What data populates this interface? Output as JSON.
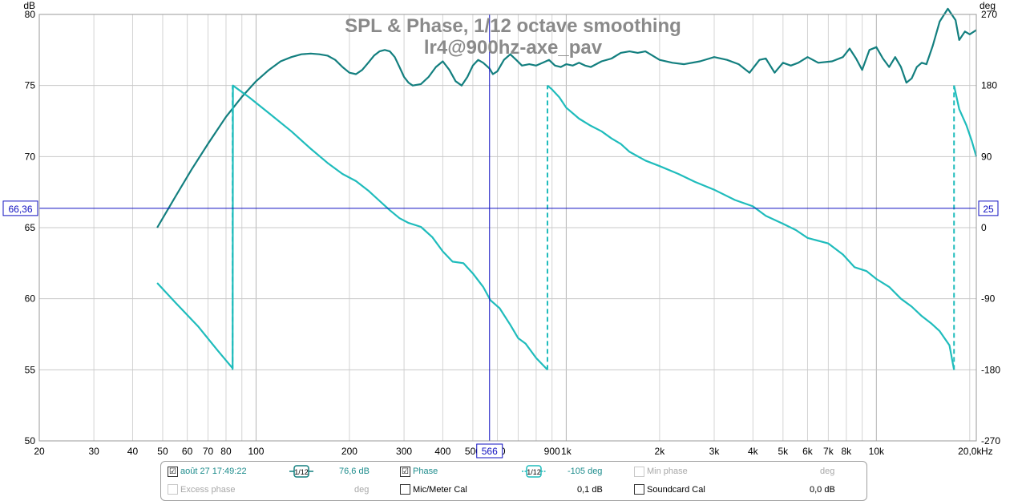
{
  "chart_data": {
    "type": "line",
    "title": "SPL & Phase, 1/12 octave smoothing",
    "subtitle": "lr4@900hz-axe_pav",
    "left_unit": "dB",
    "right_unit": "deg",
    "x_unit": "Hz",
    "xlim": [
      20,
      21000
    ],
    "x_scale": "log",
    "ylim": [
      50,
      80
    ],
    "y2lim": [
      -270,
      270
    ],
    "x_ticks": [
      {
        "v": 20,
        "label": "20"
      },
      {
        "v": 30,
        "label": "30"
      },
      {
        "v": 40,
        "label": "40"
      },
      {
        "v": 50,
        "label": "50"
      },
      {
        "v": 60,
        "label": "60"
      },
      {
        "v": 70,
        "label": "70"
      },
      {
        "v": 80,
        "label": "80"
      },
      {
        "v": 100,
        "label": "100"
      },
      {
        "v": 200,
        "label": "200"
      },
      {
        "v": 300,
        "label": "300"
      },
      {
        "v": 400,
        "label": "400"
      },
      {
        "v": 500,
        "label": "500"
      },
      {
        "v": 600,
        "label": "600"
      },
      {
        "v": 900,
        "label": "900"
      },
      {
        "v": 1000,
        "label": "1k"
      },
      {
        "v": 2000,
        "label": "2k"
      },
      {
        "v": 3000,
        "label": "3k"
      },
      {
        "v": 4000,
        "label": "4k"
      },
      {
        "v": 5000,
        "label": "5k"
      },
      {
        "v": 6000,
        "label": "6k"
      },
      {
        "v": 7000,
        "label": "7k"
      },
      {
        "v": 8000,
        "label": "8k"
      },
      {
        "v": 10000,
        "label": "10k"
      },
      {
        "v": 20000,
        "label": "20,0k"
      }
    ],
    "y_ticks": [
      50,
      55,
      60,
      65,
      70,
      75,
      80
    ],
    "y2_ticks": [
      -270,
      -180,
      -90,
      0,
      90,
      180,
      270
    ],
    "cursor": {
      "x": 566,
      "x_label": "566",
      "y": 66.36,
      "y_label": "66,36",
      "y2_label": "25"
    },
    "colors": {
      "spl": "#137f7f",
      "phase": "#1fbcbc",
      "cursor": "#1010c0",
      "grid": "#cfcfcf"
    },
    "series": [
      {
        "name": "SPL",
        "axis": "left",
        "points": [
          [
            48,
            65.0
          ],
          [
            55,
            67.2
          ],
          [
            62,
            69.1
          ],
          [
            70,
            70.9
          ],
          [
            80,
            72.8
          ],
          [
            90,
            74.2
          ],
          [
            100,
            75.3
          ],
          [
            110,
            76.1
          ],
          [
            120,
            76.7
          ],
          [
            130,
            77.0
          ],
          [
            140,
            77.2
          ],
          [
            150,
            77.25
          ],
          [
            160,
            77.2
          ],
          [
            170,
            77.1
          ],
          [
            180,
            76.8
          ],
          [
            190,
            76.3
          ],
          [
            200,
            75.9
          ],
          [
            210,
            75.8
          ],
          [
            220,
            76.1
          ],
          [
            230,
            76.6
          ],
          [
            240,
            77.1
          ],
          [
            250,
            77.4
          ],
          [
            260,
            77.5
          ],
          [
            270,
            77.4
          ],
          [
            280,
            77.0
          ],
          [
            290,
            76.3
          ],
          [
            300,
            75.6
          ],
          [
            310,
            75.2
          ],
          [
            320,
            75.0
          ],
          [
            340,
            75.1
          ],
          [
            360,
            75.6
          ],
          [
            380,
            76.3
          ],
          [
            400,
            76.7
          ],
          [
            420,
            76.1
          ],
          [
            440,
            75.3
          ],
          [
            460,
            75.0
          ],
          [
            480,
            75.6
          ],
          [
            500,
            76.4
          ],
          [
            520,
            76.8
          ],
          [
            540,
            76.6
          ],
          [
            566,
            76.2
          ],
          [
            580,
            75.8
          ],
          [
            600,
            76.0
          ],
          [
            630,
            76.8
          ],
          [
            660,
            77.2
          ],
          [
            690,
            76.8
          ],
          [
            720,
            76.4
          ],
          [
            760,
            76.5
          ],
          [
            800,
            76.4
          ],
          [
            840,
            76.6
          ],
          [
            880,
            76.8
          ],
          [
            920,
            76.4
          ],
          [
            960,
            76.3
          ],
          [
            1000,
            76.5
          ],
          [
            1050,
            76.4
          ],
          [
            1100,
            76.6
          ],
          [
            1150,
            76.4
          ],
          [
            1200,
            76.3
          ],
          [
            1300,
            76.7
          ],
          [
            1400,
            76.9
          ],
          [
            1500,
            77.3
          ],
          [
            1600,
            77.4
          ],
          [
            1700,
            77.3
          ],
          [
            1800,
            77.4
          ],
          [
            1900,
            77.1
          ],
          [
            2000,
            76.8
          ],
          [
            2200,
            76.6
          ],
          [
            2400,
            76.5
          ],
          [
            2700,
            76.7
          ],
          [
            3000,
            77.0
          ],
          [
            3300,
            76.8
          ],
          [
            3600,
            76.5
          ],
          [
            3900,
            75.9
          ],
          [
            4200,
            76.8
          ],
          [
            4400,
            76.9
          ],
          [
            4700,
            75.9
          ],
          [
            5000,
            76.6
          ],
          [
            5300,
            76.4
          ],
          [
            5600,
            76.6
          ],
          [
            6000,
            77.0
          ],
          [
            6500,
            76.6
          ],
          [
            7200,
            76.7
          ],
          [
            7800,
            77.0
          ],
          [
            8200,
            77.6
          ],
          [
            8600,
            76.9
          ],
          [
            9000,
            76.1
          ],
          [
            9500,
            77.5
          ],
          [
            10000,
            77.7
          ],
          [
            10500,
            76.9
          ],
          [
            11000,
            76.3
          ],
          [
            11500,
            77.0
          ],
          [
            12000,
            76.3
          ],
          [
            12500,
            75.2
          ],
          [
            13000,
            75.5
          ],
          [
            13500,
            76.3
          ],
          [
            14000,
            76.6
          ],
          [
            14500,
            76.5
          ],
          [
            15200,
            77.8
          ],
          [
            16000,
            79.5
          ],
          [
            17000,
            80.4
          ],
          [
            18000,
            79.6
          ],
          [
            18500,
            78.2
          ],
          [
            19300,
            78.8
          ],
          [
            20000,
            78.6
          ],
          [
            21000,
            78.9
          ]
        ]
      },
      {
        "name": "Phase",
        "axis": "right",
        "segments": [
          [
            [
              48,
              -70
            ],
            [
              55,
              -95
            ],
            [
              65,
              -125
            ],
            [
              75,
              -155
            ],
            [
              84,
              -178
            ],
            [
              84.2,
              180
            ],
            [
              95,
              165
            ],
            [
              110,
              145
            ],
            [
              130,
              122
            ],
            [
              150,
              100
            ],
            [
              170,
              82
            ],
            [
              190,
              68
            ],
            [
              210,
              59
            ],
            [
              230,
              47
            ],
            [
              250,
              34
            ],
            [
              270,
              22
            ],
            [
              290,
              12
            ],
            [
              310,
              6
            ],
            [
              340,
              1
            ],
            [
              370,
              -12
            ],
            [
              400,
              -30
            ],
            [
              430,
              -43
            ],
            [
              466,
              -45
            ],
            [
              500,
              -58
            ],
            [
              540,
              -75
            ],
            [
              570,
              -92
            ],
            [
              610,
              -102
            ],
            [
              660,
              -123
            ],
            [
              700,
              -140
            ],
            [
              740,
              -147
            ],
            [
              800,
              -165
            ],
            [
              870,
              -180
            ]
          ],
          [
            [
              870,
              180
            ],
            [
              900,
              175
            ],
            [
              950,
              165
            ],
            [
              1000,
              152
            ],
            [
              1100,
              138
            ],
            [
              1200,
              129
            ],
            [
              1300,
              122
            ],
            [
              1400,
              113
            ],
            [
              1500,
              106
            ],
            [
              1600,
              96
            ],
            [
              1800,
              85
            ],
            [
              2000,
              78
            ],
            [
              2300,
              68
            ],
            [
              2600,
              58
            ],
            [
              3000,
              48
            ],
            [
              3500,
              35
            ],
            [
              4000,
              27
            ],
            [
              4400,
              15
            ],
            [
              5000,
              5
            ],
            [
              5500,
              -3
            ],
            [
              6000,
              -13
            ],
            [
              7000,
              -20
            ],
            [
              7800,
              -34
            ],
            [
              8500,
              -50
            ],
            [
              9300,
              -55
            ],
            [
              10000,
              -65
            ],
            [
              11000,
              -75
            ],
            [
              12000,
              -90
            ],
            [
              13000,
              -100
            ],
            [
              14000,
              -112
            ],
            [
              15000,
              -121
            ],
            [
              16000,
              -131
            ],
            [
              17200,
              -149
            ],
            [
              17800,
              -180
            ]
          ],
          [
            [
              17800,
              180
            ],
            [
              18500,
              150
            ],
            [
              19500,
              130
            ],
            [
              20300,
              110
            ],
            [
              21000,
              90
            ]
          ]
        ],
        "jumps": [
          84,
          870,
          17800
        ]
      }
    ]
  },
  "legend": {
    "row1": {
      "meas_checked": "☑",
      "meas_label": "août 27 17:49:22",
      "spl_smoothing": "1/12",
      "spl_value": "76,6 dB",
      "phase_checked": "☑",
      "phase_label": "Phase",
      "phase_smoothing": "1/12",
      "phase_value": "-105 deg",
      "minphase_label": "Min phase",
      "minphase_unit": "deg"
    },
    "row2": {
      "excess_label": "Excess phase",
      "excess_unit": "deg",
      "mic_label": "Mic/Meter Cal",
      "mic_value": "0,1 dB",
      "sound_label": "Soundcard Cal",
      "sound_value": "0,0 dB"
    }
  }
}
